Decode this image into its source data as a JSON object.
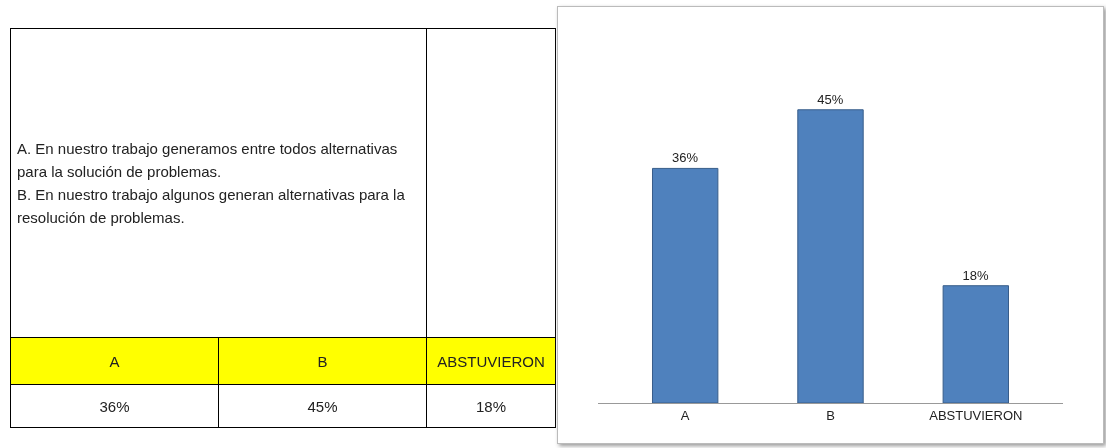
{
  "chart_data": {
    "type": "bar",
    "categories": [
      "A",
      "B",
      "ABSTUVIERON"
    ],
    "values": [
      36,
      45,
      18
    ],
    "value_labels": [
      "36%",
      "45%",
      "18%"
    ],
    "color": "#4f81bd",
    "annotations": [
      "A.  En nuestro trabajo generamos entre todos alternativas para la solución de problemas.",
      "B.  En nuestro trabajo algunos generan alternativas para la resolución de problemas."
    ]
  }
}
